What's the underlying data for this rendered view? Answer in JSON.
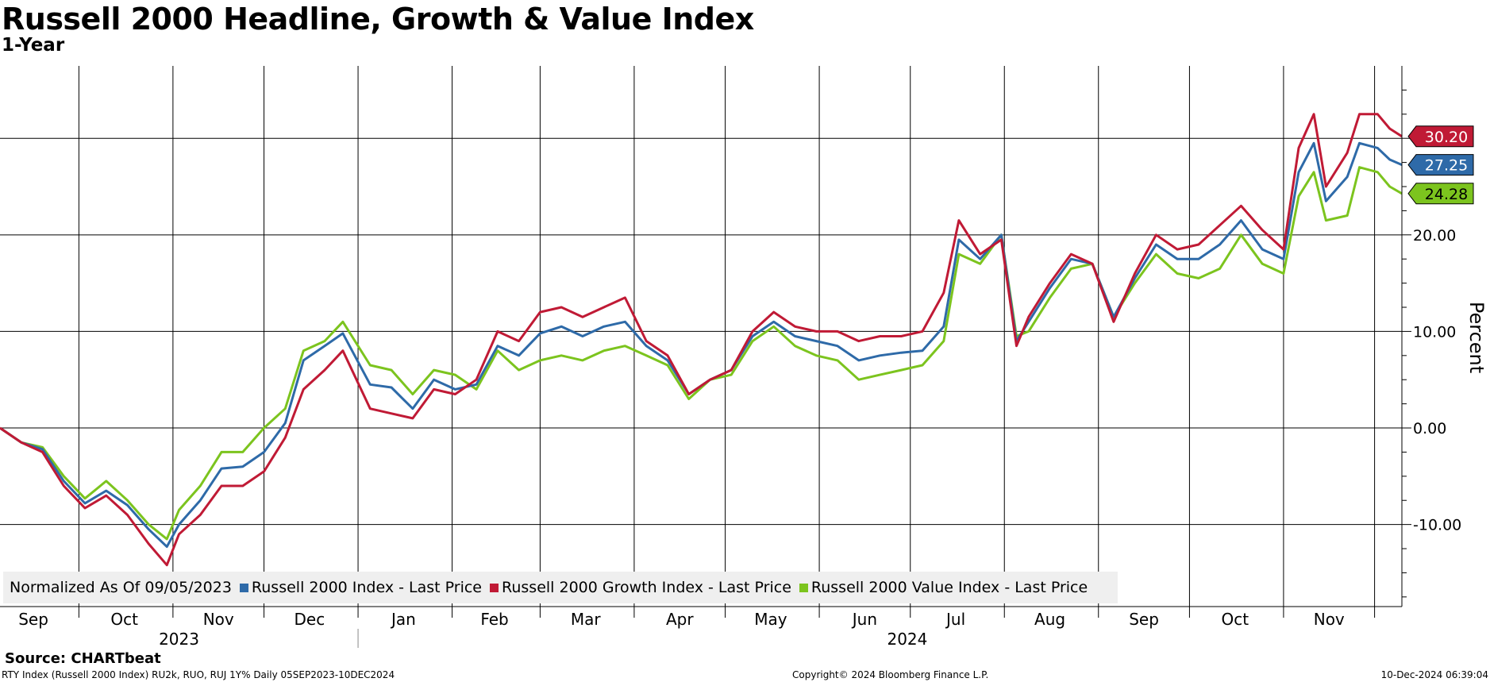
{
  "title": "Russell 2000 Headline, Growth & Value Index",
  "subtitle": "1-Year",
  "source": "Source: CHARTbeat",
  "footer_left": "RTY Index (Russell 2000 Index) RU2k, RUO, RUJ 1Y% Daily 05SEP2023-10DEC2024",
  "footer_mid": "Copyright© 2024 Bloomberg Finance L.P.",
  "footer_right": "10-Dec-2024 06:39:04",
  "legend": {
    "normalized": "Normalized As Of 09/05/2023",
    "items": [
      {
        "label": "Russell 2000 Index - Last Price",
        "color": "#2e6aa8"
      },
      {
        "label": "Russell 2000 Growth Index - Last Price",
        "color": "#c01a35"
      },
      {
        "label": "Russell 2000 Value Index - Last Price",
        "color": "#7cc41e"
      }
    ]
  },
  "chart_data": {
    "type": "line",
    "ylabel": "Percent",
    "ylim": [
      -18.5,
      37.5
    ],
    "yticks": [
      -10,
      0,
      10,
      20
    ],
    "ytick_labels": [
      "-10.00",
      "0.00",
      "10.00",
      "20.00"
    ],
    "grid": true,
    "x_start": "2023-09-05",
    "x_end": "2024-12-10",
    "months": [
      {
        "label": "Sep",
        "date": "2023-09-16"
      },
      {
        "label": "Oct",
        "date": "2023-10-16"
      },
      {
        "label": "Nov",
        "date": "2023-11-16"
      },
      {
        "label": "Dec",
        "date": "2023-12-16"
      },
      {
        "label": "Jan",
        "date": "2024-01-16"
      },
      {
        "label": "Feb",
        "date": "2024-02-15"
      },
      {
        "label": "Mar",
        "date": "2024-03-16"
      },
      {
        "label": "Apr",
        "date": "2024-04-16"
      },
      {
        "label": "May",
        "date": "2024-05-16"
      },
      {
        "label": "Jun",
        "date": "2024-06-16"
      },
      {
        "label": "Jul",
        "date": "2024-07-16"
      },
      {
        "label": "Aug",
        "date": "2024-08-16"
      },
      {
        "label": "Sep",
        "date": "2024-09-16"
      },
      {
        "label": "Oct",
        "date": "2024-10-16"
      },
      {
        "label": "Nov",
        "date": "2024-11-16"
      }
    ],
    "years": [
      {
        "label": "2023",
        "date": "2023-11-03"
      },
      {
        "label": "2024",
        "date": "2024-06-30"
      }
    ],
    "series": [
      {
        "name": "Russell 2000 Index - Last Price",
        "color": "#2e6aa8",
        "last_label": "27.25",
        "points": [
          [
            "2023-09-05",
            0
          ],
          [
            "2023-09-12",
            -1.5
          ],
          [
            "2023-09-19",
            -2.2
          ],
          [
            "2023-09-26",
            -5.5
          ],
          [
            "2023-10-03",
            -7.8
          ],
          [
            "2023-10-10",
            -6.5
          ],
          [
            "2023-10-17",
            -8.0
          ],
          [
            "2023-10-24",
            -10.5
          ],
          [
            "2023-10-30",
            -12.3
          ],
          [
            "2023-11-03",
            -10.0
          ],
          [
            "2023-11-10",
            -7.5
          ],
          [
            "2023-11-17",
            -4.2
          ],
          [
            "2023-11-24",
            -4.0
          ],
          [
            "2023-12-01",
            -2.5
          ],
          [
            "2023-12-08",
            0.5
          ],
          [
            "2023-12-14",
            7.0
          ],
          [
            "2023-12-21",
            8.5
          ],
          [
            "2023-12-27",
            9.8
          ],
          [
            "2024-01-05",
            4.5
          ],
          [
            "2024-01-12",
            4.2
          ],
          [
            "2024-01-19",
            2.0
          ],
          [
            "2024-01-26",
            5.0
          ],
          [
            "2024-02-02",
            4.0
          ],
          [
            "2024-02-09",
            4.5
          ],
          [
            "2024-02-16",
            8.5
          ],
          [
            "2024-02-23",
            7.5
          ],
          [
            "2024-03-01",
            9.8
          ],
          [
            "2024-03-08",
            10.5
          ],
          [
            "2024-03-15",
            9.5
          ],
          [
            "2024-03-22",
            10.5
          ],
          [
            "2024-03-29",
            11.0
          ],
          [
            "2024-04-05",
            8.5
          ],
          [
            "2024-04-12",
            7.0
          ],
          [
            "2024-04-19",
            3.5
          ],
          [
            "2024-04-26",
            5.0
          ],
          [
            "2024-05-03",
            6.0
          ],
          [
            "2024-05-10",
            9.5
          ],
          [
            "2024-05-17",
            11.0
          ],
          [
            "2024-05-24",
            9.5
          ],
          [
            "2024-05-31",
            9.0
          ],
          [
            "2024-06-07",
            8.5
          ],
          [
            "2024-06-14",
            7.0
          ],
          [
            "2024-06-21",
            7.5
          ],
          [
            "2024-06-28",
            7.8
          ],
          [
            "2024-07-05",
            8.0
          ],
          [
            "2024-07-12",
            10.5
          ],
          [
            "2024-07-17",
            19.5
          ],
          [
            "2024-07-24",
            17.5
          ],
          [
            "2024-07-31",
            20.0
          ],
          [
            "2024-08-05",
            9.0
          ],
          [
            "2024-08-09",
            11.0
          ],
          [
            "2024-08-16",
            14.5
          ],
          [
            "2024-08-23",
            17.5
          ],
          [
            "2024-08-30",
            17.0
          ],
          [
            "2024-09-06",
            11.5
          ],
          [
            "2024-09-13",
            15.5
          ],
          [
            "2024-09-20",
            19.0
          ],
          [
            "2024-09-27",
            17.5
          ],
          [
            "2024-10-04",
            17.5
          ],
          [
            "2024-10-11",
            19.0
          ],
          [
            "2024-10-18",
            21.5
          ],
          [
            "2024-10-25",
            18.5
          ],
          [
            "2024-11-01",
            17.5
          ],
          [
            "2024-11-06",
            26.5
          ],
          [
            "2024-11-11",
            29.5
          ],
          [
            "2024-11-15",
            23.5
          ],
          [
            "2024-11-22",
            26.0
          ],
          [
            "2024-11-26",
            29.5
          ],
          [
            "2024-12-02",
            29.0
          ],
          [
            "2024-12-06",
            27.8
          ],
          [
            "2024-12-10",
            27.25
          ]
        ]
      },
      {
        "name": "Russell 2000 Growth Index - Last Price",
        "color": "#c01a35",
        "last_label": "30.20",
        "points": [
          [
            "2023-09-05",
            0
          ],
          [
            "2023-09-12",
            -1.5
          ],
          [
            "2023-09-19",
            -2.5
          ],
          [
            "2023-09-26",
            -6.0
          ],
          [
            "2023-10-03",
            -8.3
          ],
          [
            "2023-10-10",
            -7.0
          ],
          [
            "2023-10-17",
            -9.0
          ],
          [
            "2023-10-24",
            -12.0
          ],
          [
            "2023-10-30",
            -14.2
          ],
          [
            "2023-11-03",
            -11.0
          ],
          [
            "2023-11-10",
            -9.0
          ],
          [
            "2023-11-17",
            -6.0
          ],
          [
            "2023-11-24",
            -6.0
          ],
          [
            "2023-12-01",
            -4.5
          ],
          [
            "2023-12-08",
            -1.0
          ],
          [
            "2023-12-14",
            4.0
          ],
          [
            "2023-12-21",
            6.0
          ],
          [
            "2023-12-27",
            8.0
          ],
          [
            "2024-01-05",
            2.0
          ],
          [
            "2024-01-12",
            1.5
          ],
          [
            "2024-01-19",
            1.0
          ],
          [
            "2024-01-26",
            4.0
          ],
          [
            "2024-02-02",
            3.5
          ],
          [
            "2024-02-09",
            5.0
          ],
          [
            "2024-02-16",
            10.0
          ],
          [
            "2024-02-23",
            9.0
          ],
          [
            "2024-03-01",
            12.0
          ],
          [
            "2024-03-08",
            12.5
          ],
          [
            "2024-03-15",
            11.5
          ],
          [
            "2024-03-22",
            12.5
          ],
          [
            "2024-03-29",
            13.5
          ],
          [
            "2024-04-05",
            9.0
          ],
          [
            "2024-04-12",
            7.5
          ],
          [
            "2024-04-19",
            3.5
          ],
          [
            "2024-04-26",
            5.0
          ],
          [
            "2024-05-03",
            6.0
          ],
          [
            "2024-05-10",
            10.0
          ],
          [
            "2024-05-17",
            12.0
          ],
          [
            "2024-05-24",
            10.5
          ],
          [
            "2024-05-31",
            10.0
          ],
          [
            "2024-06-07",
            10.0
          ],
          [
            "2024-06-14",
            9.0
          ],
          [
            "2024-06-21",
            9.5
          ],
          [
            "2024-06-28",
            9.5
          ],
          [
            "2024-07-05",
            10.0
          ],
          [
            "2024-07-12",
            14.0
          ],
          [
            "2024-07-17",
            21.5
          ],
          [
            "2024-07-24",
            18.0
          ],
          [
            "2024-07-31",
            19.5
          ],
          [
            "2024-08-05",
            8.5
          ],
          [
            "2024-08-09",
            11.5
          ],
          [
            "2024-08-16",
            15.0
          ],
          [
            "2024-08-23",
            18.0
          ],
          [
            "2024-08-30",
            17.0
          ],
          [
            "2024-09-06",
            11.0
          ],
          [
            "2024-09-13",
            16.0
          ],
          [
            "2024-09-20",
            20.0
          ],
          [
            "2024-09-27",
            18.5
          ],
          [
            "2024-10-04",
            19.0
          ],
          [
            "2024-10-11",
            21.0
          ],
          [
            "2024-10-18",
            23.0
          ],
          [
            "2024-10-25",
            20.5
          ],
          [
            "2024-11-01",
            18.5
          ],
          [
            "2024-11-06",
            29.0
          ],
          [
            "2024-11-11",
            32.5
          ],
          [
            "2024-11-15",
            25.0
          ],
          [
            "2024-11-22",
            28.5
          ],
          [
            "2024-11-26",
            32.5
          ],
          [
            "2024-12-02",
            32.5
          ],
          [
            "2024-12-06",
            31.0
          ],
          [
            "2024-12-10",
            30.2
          ]
        ]
      },
      {
        "name": "Russell 2000 Value Index - Last Price",
        "color": "#7cc41e",
        "last_label": "24.28",
        "points": [
          [
            "2023-09-05",
            0
          ],
          [
            "2023-09-12",
            -1.5
          ],
          [
            "2023-09-19",
            -2.0
          ],
          [
            "2023-09-26",
            -5.0
          ],
          [
            "2023-10-03",
            -7.3
          ],
          [
            "2023-10-10",
            -5.5
          ],
          [
            "2023-10-17",
            -7.5
          ],
          [
            "2023-10-24",
            -10.0
          ],
          [
            "2023-10-30",
            -11.5
          ],
          [
            "2023-11-03",
            -8.5
          ],
          [
            "2023-11-10",
            -6.0
          ],
          [
            "2023-11-17",
            -2.5
          ],
          [
            "2023-11-24",
            -2.5
          ],
          [
            "2023-12-01",
            0.0
          ],
          [
            "2023-12-08",
            2.0
          ],
          [
            "2023-12-14",
            8.0
          ],
          [
            "2023-12-21",
            9.0
          ],
          [
            "2023-12-27",
            11.0
          ],
          [
            "2024-01-05",
            6.5
          ],
          [
            "2024-01-12",
            6.0
          ],
          [
            "2024-01-19",
            3.5
          ],
          [
            "2024-01-26",
            6.0
          ],
          [
            "2024-02-02",
            5.5
          ],
          [
            "2024-02-09",
            4.0
          ],
          [
            "2024-02-16",
            8.0
          ],
          [
            "2024-02-23",
            6.0
          ],
          [
            "2024-03-01",
            7.0
          ],
          [
            "2024-03-08",
            7.5
          ],
          [
            "2024-03-15",
            7.0
          ],
          [
            "2024-03-22",
            8.0
          ],
          [
            "2024-03-29",
            8.5
          ],
          [
            "2024-04-05",
            7.5
          ],
          [
            "2024-04-12",
            6.5
          ],
          [
            "2024-04-19",
            3.0
          ],
          [
            "2024-04-26",
            5.0
          ],
          [
            "2024-05-03",
            5.5
          ],
          [
            "2024-05-10",
            9.0
          ],
          [
            "2024-05-17",
            10.5
          ],
          [
            "2024-05-24",
            8.5
          ],
          [
            "2024-05-31",
            7.5
          ],
          [
            "2024-06-07",
            7.0
          ],
          [
            "2024-06-14",
            5.0
          ],
          [
            "2024-06-21",
            5.5
          ],
          [
            "2024-06-28",
            6.0
          ],
          [
            "2024-07-05",
            6.5
          ],
          [
            "2024-07-12",
            9.0
          ],
          [
            "2024-07-17",
            18.0
          ],
          [
            "2024-07-24",
            17.0
          ],
          [
            "2024-07-31",
            20.0
          ],
          [
            "2024-08-05",
            9.5
          ],
          [
            "2024-08-09",
            10.0
          ],
          [
            "2024-08-16",
            13.5
          ],
          [
            "2024-08-23",
            16.5
          ],
          [
            "2024-08-30",
            17.0
          ],
          [
            "2024-09-06",
            11.5
          ],
          [
            "2024-09-13",
            15.0
          ],
          [
            "2024-09-20",
            18.0
          ],
          [
            "2024-09-27",
            16.0
          ],
          [
            "2024-10-04",
            15.5
          ],
          [
            "2024-10-11",
            16.5
          ],
          [
            "2024-10-18",
            20.0
          ],
          [
            "2024-10-25",
            17.0
          ],
          [
            "2024-11-01",
            16.0
          ],
          [
            "2024-11-06",
            24.0
          ],
          [
            "2024-11-11",
            26.5
          ],
          [
            "2024-11-15",
            21.5
          ],
          [
            "2024-11-22",
            22.0
          ],
          [
            "2024-11-26",
            27.0
          ],
          [
            "2024-12-02",
            26.5
          ],
          [
            "2024-12-06",
            25.0
          ],
          [
            "2024-12-10",
            24.28
          ]
        ]
      }
    ]
  }
}
